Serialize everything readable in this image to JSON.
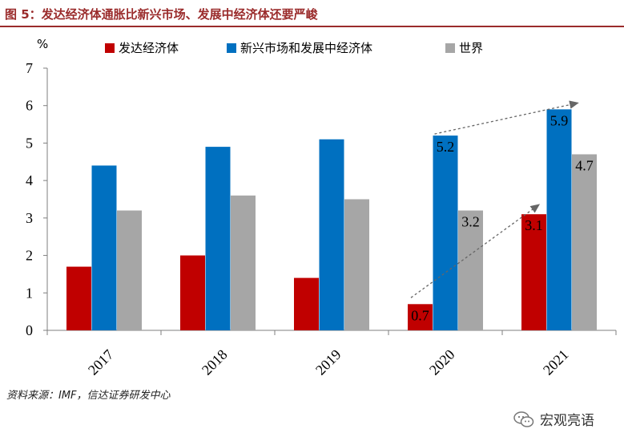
{
  "title": "图 5：发达经济体通胀比新兴市场、发展中经济体还要严峻",
  "source": "资料来源：IMF，信达证券研发中心",
  "brand": {
    "name": "宏观亮语",
    "logo_icon": "wechat-logo-icon"
  },
  "chart_data": {
    "type": "bar",
    "unit_label": "%",
    "categories": [
      "2017",
      "2018",
      "2019",
      "2020",
      "2021"
    ],
    "ylim": [
      0,
      7
    ],
    "yticks": [
      0,
      1,
      2,
      3,
      4,
      5,
      6,
      7
    ],
    "grid": false,
    "legend_position": "top",
    "series": [
      {
        "name": "发达经济体",
        "color": "#c00000",
        "values": [
          1.7,
          2.0,
          1.4,
          0.7,
          3.1
        ]
      },
      {
        "name": "新兴市场和发展中经济体",
        "color": "#0070c0",
        "values": [
          4.4,
          4.9,
          5.1,
          5.2,
          5.9
        ]
      },
      {
        "name": "世界",
        "color": "#a6a6a6",
        "values": [
          3.2,
          3.6,
          3.5,
          3.2,
          4.7
        ]
      }
    ],
    "data_labels": [
      {
        "series": 0,
        "index": 3,
        "text": "0.7"
      },
      {
        "series": 0,
        "index": 4,
        "text": "3.1"
      },
      {
        "series": 1,
        "index": 3,
        "text": "5.2"
      },
      {
        "series": 1,
        "index": 4,
        "text": "5.9"
      },
      {
        "series": 2,
        "index": 3,
        "text": "3.2"
      },
      {
        "series": 2,
        "index": 4,
        "text": "4.7"
      }
    ],
    "annotations": [
      {
        "type": "dashed-arrow",
        "series": 0,
        "from_index": 3,
        "to_index": 4
      },
      {
        "type": "dashed-arrow",
        "series": 1,
        "from_index": 3,
        "to_index": 4
      }
    ]
  }
}
